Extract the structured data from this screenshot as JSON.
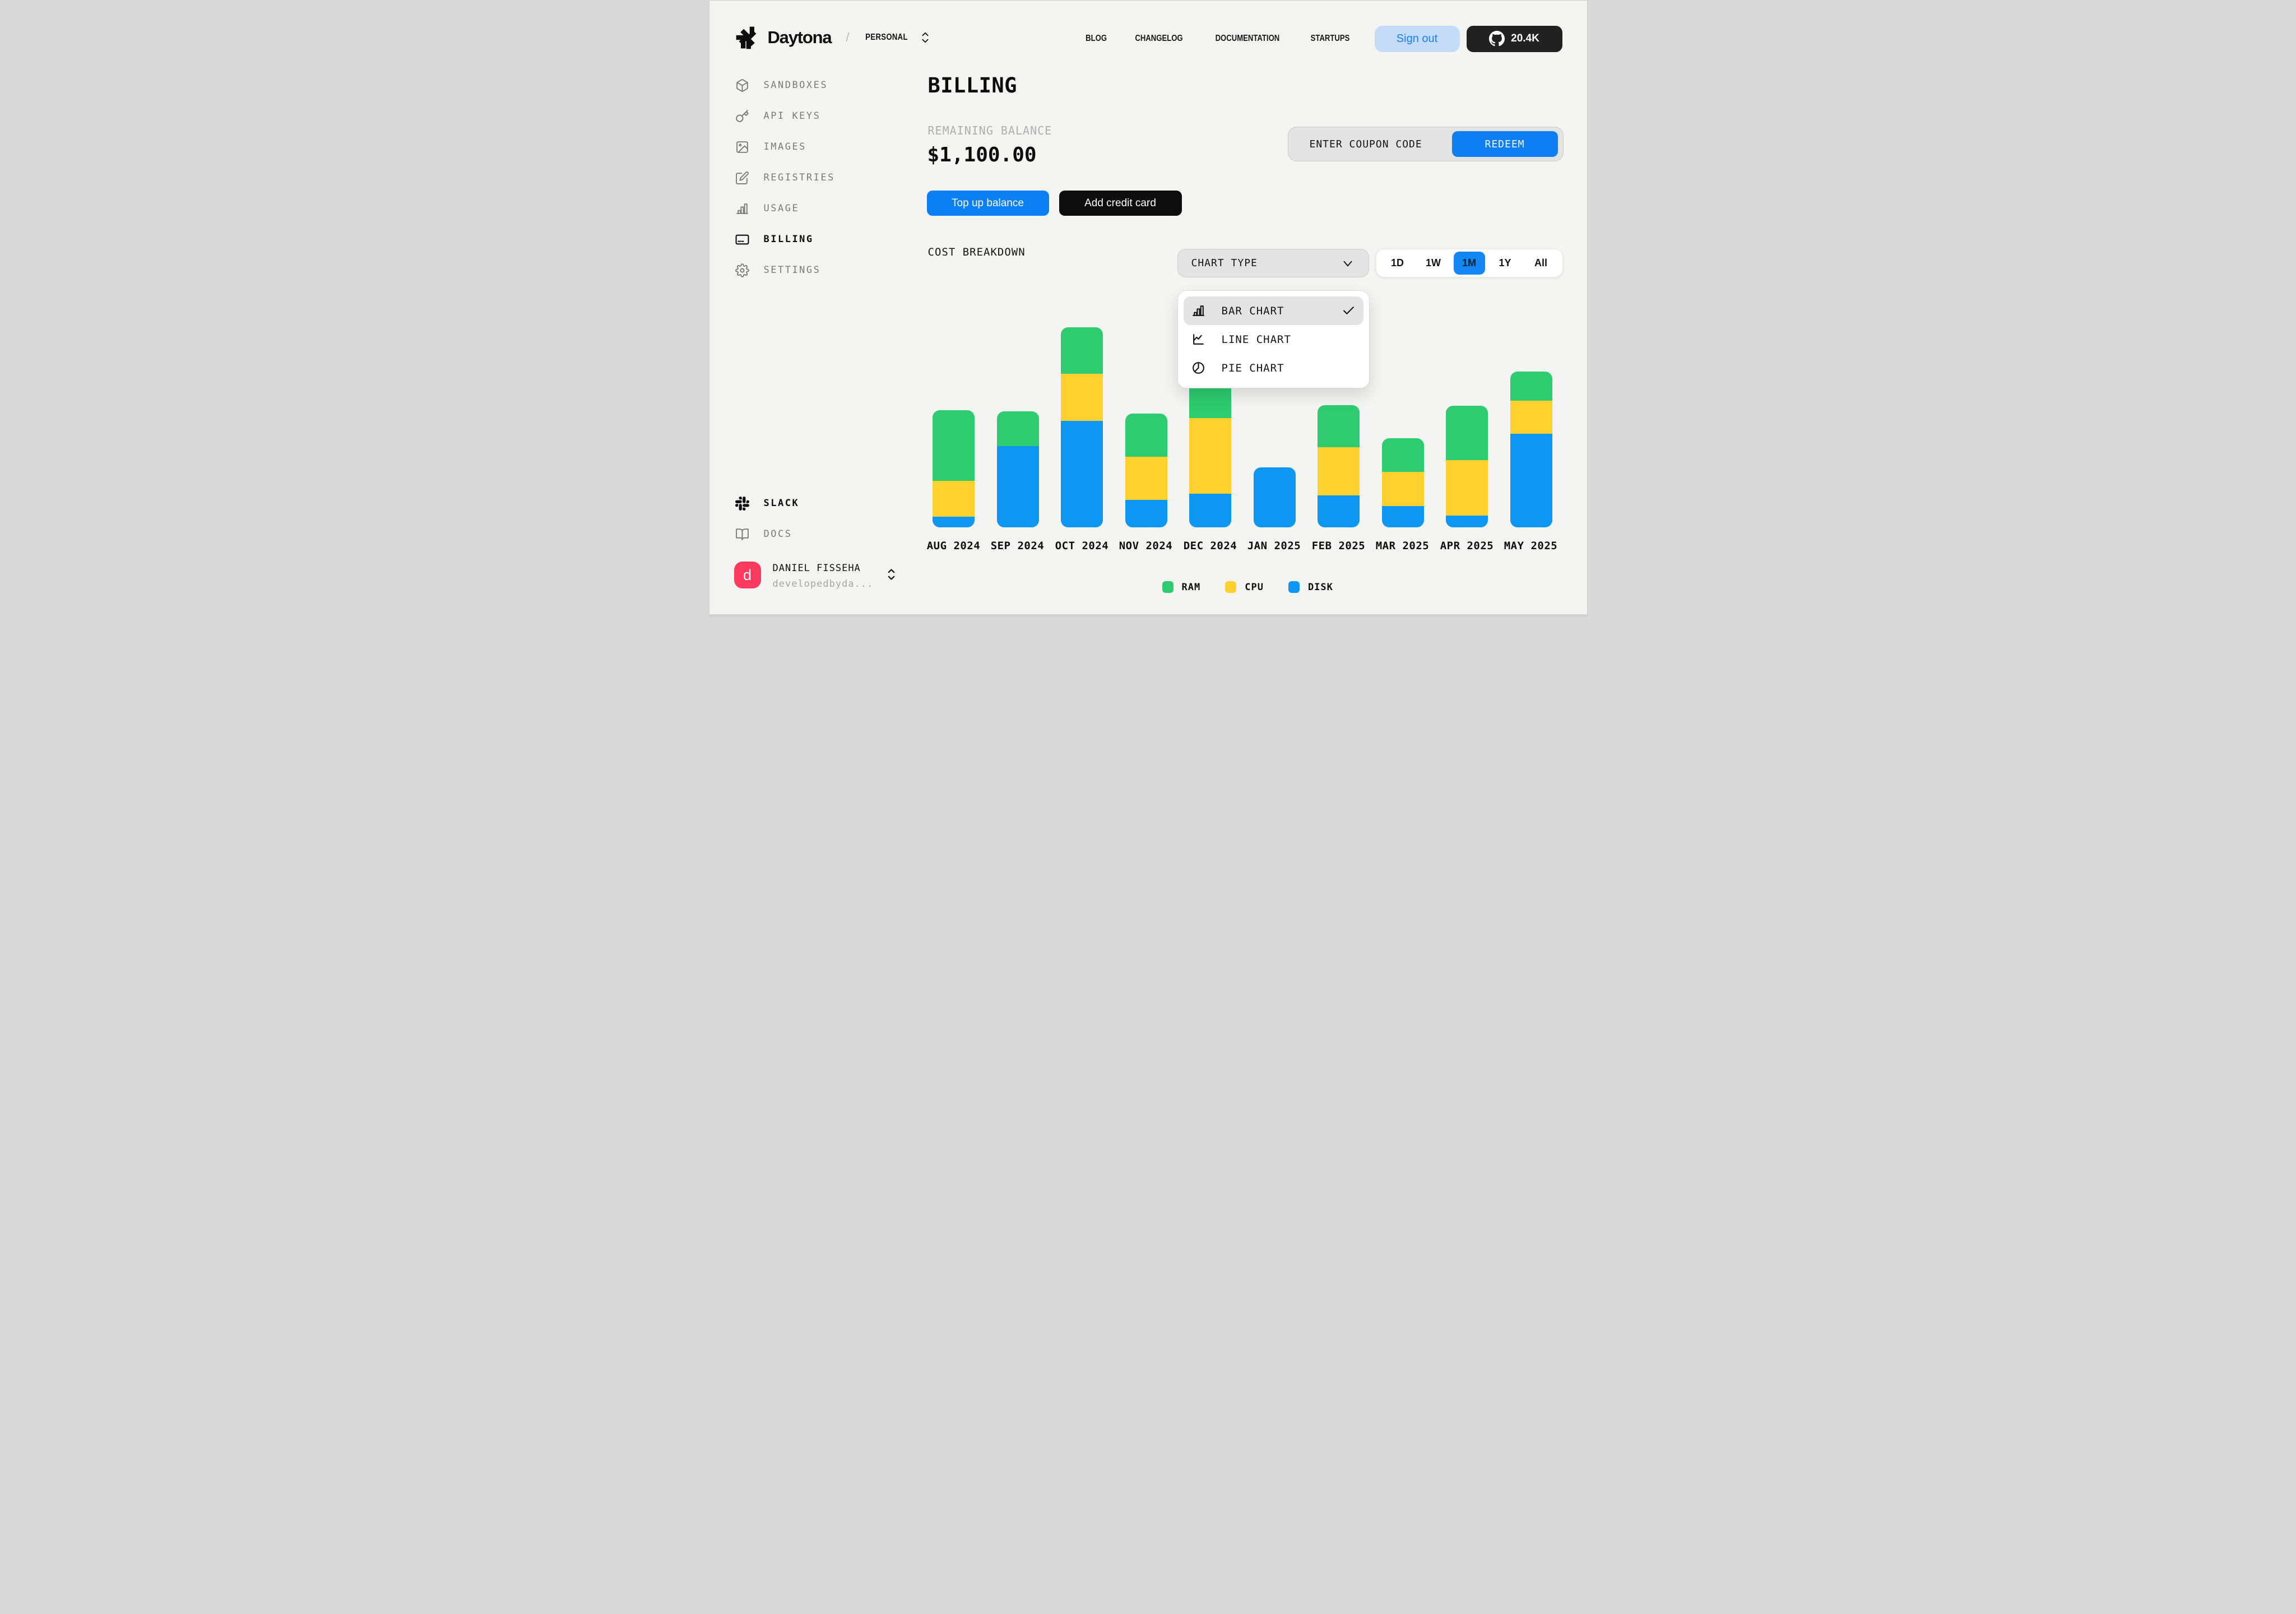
{
  "header": {
    "brand": "Daytona",
    "crumb_separator": "/",
    "org": "PERSONAL",
    "nav": [
      {
        "label": "BLOG"
      },
      {
        "label": "CHANGELOG"
      },
      {
        "label": "DOCUMENTATION"
      },
      {
        "label": "STARTUPS"
      }
    ],
    "sign_out_label": "Sign out",
    "github_stars": "20.4K"
  },
  "sidebar": {
    "items": [
      {
        "label": "SANDBOXES",
        "icon": "cube-icon",
        "active": false
      },
      {
        "label": "API KEYS",
        "icon": "key-icon",
        "active": false
      },
      {
        "label": "IMAGES",
        "icon": "image-icon",
        "active": false
      },
      {
        "label": "REGISTRIES",
        "icon": "edit-icon",
        "active": false
      },
      {
        "label": "USAGE",
        "icon": "usage-chart-icon",
        "active": false
      },
      {
        "label": "BILLING",
        "icon": "credit-card-icon",
        "active": true
      },
      {
        "label": "SETTINGS",
        "icon": "gear-icon",
        "active": false
      }
    ],
    "footer_items": [
      {
        "label": "SLACK",
        "icon": "slack-icon",
        "emphasis": true
      },
      {
        "label": "DOCS",
        "icon": "docs-book-icon",
        "emphasis": false
      }
    ],
    "user": {
      "initial": "d",
      "name": "DANIEL FISSEHA",
      "handle": "developedbyda...",
      "avatar_color": "#fb3a5e"
    }
  },
  "main": {
    "title": "BILLING",
    "balance_label": "REMAINING BALANCE",
    "balance_value": "$1,100.00",
    "coupon": {
      "placeholder": "ENTER COUPON CODE",
      "redeem_label": "REDEEM"
    },
    "actions": {
      "top_up_label": "Top up balance",
      "add_card_label": "Add credit card"
    },
    "section_label": "COST BREAKDOWN",
    "chart_type_selector_label": "CHART TYPE",
    "chart_type_options": [
      {
        "label": "BAR CHART",
        "icon": "bar-chart-icon",
        "selected": true
      },
      {
        "label": "LINE CHART",
        "icon": "line-chart-icon",
        "selected": false
      },
      {
        "label": "PIE CHART",
        "icon": "pie-chart-icon",
        "selected": false
      }
    ],
    "ranges": [
      {
        "label": "1D",
        "active": false
      },
      {
        "label": "1W",
        "active": false
      },
      {
        "label": "1M",
        "active": true
      },
      {
        "label": "1Y",
        "active": false
      },
      {
        "label": "All",
        "active": false
      }
    ]
  },
  "chart_data": {
    "type": "bar",
    "stacked": true,
    "title": "COST BREAKDOWN",
    "xlabel": "",
    "ylabel": "",
    "units": "relative (no y-axis shown, values estimated from bar heights, tallest bar = 100)",
    "categories": [
      "AUG 2024",
      "SEP 2024",
      "OCT 2024",
      "NOV 2024",
      "DEC 2024",
      "JAN 2025",
      "FEB 2025",
      "MAR 2025",
      "APR 2025",
      "MAY 2025"
    ],
    "series": [
      {
        "name": "RAM",
        "color": "#2ecb70",
        "values": [
          35.3,
          17.4,
          23.2,
          21.6,
          19.6,
          0,
          21.0,
          16.8,
          27.2,
          14.6
        ]
      },
      {
        "name": "CPU",
        "color": "#ffd12e",
        "values": [
          17.9,
          0,
          23.5,
          21.6,
          37.8,
          0,
          24.1,
          17.1,
          27.7,
          16.5
        ]
      },
      {
        "name": "DISK",
        "color": "#0d96f2",
        "values": [
          5.3,
          40.6,
          53.2,
          13.7,
          16.8,
          30.0,
          16.0,
          10.6,
          5.9,
          46.8
        ]
      }
    ],
    "stack_order_bottom_to_top": [
      "DISK",
      "CPU",
      "RAM"
    ],
    "ylim": [
      0,
      100
    ],
    "grid": false,
    "legend": [
      "RAM",
      "CPU",
      "DISK"
    ],
    "legend_position": "bottom"
  },
  "colors": {
    "background": "#f4f4f3",
    "accent_blue": "#0d7ff2",
    "bar_green": "#2ecb70",
    "bar_yellow": "#ffd12e",
    "bar_blue": "#0d96f2",
    "sign_out_bg": "#c5dcf8",
    "sign_out_text": "#1a7df0",
    "github_bg": "#212121",
    "avatar_pink": "#fb3a5e"
  }
}
